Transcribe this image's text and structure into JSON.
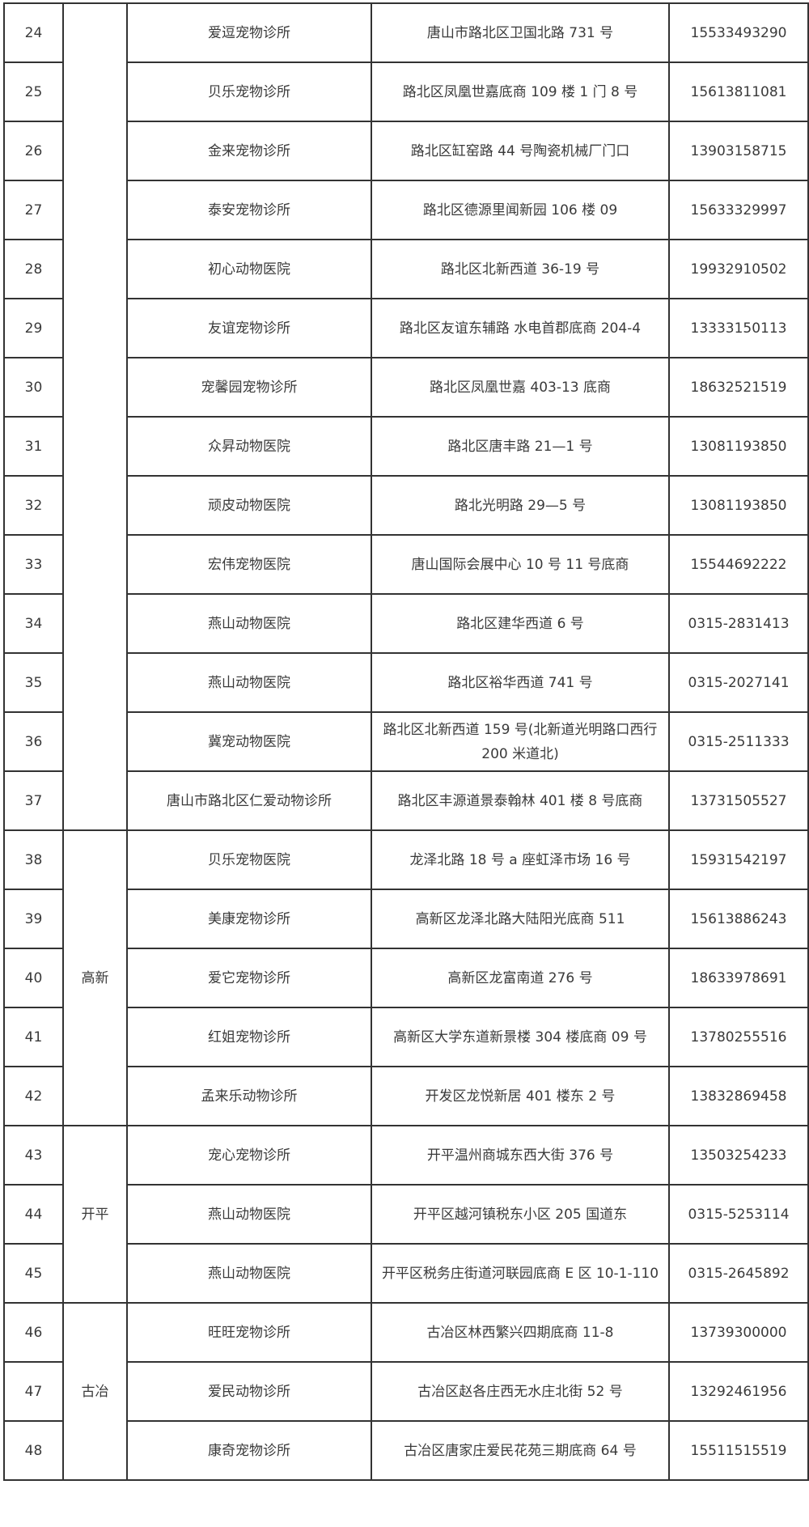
{
  "rows": [
    {
      "no": "24",
      "name": "爱逗宠物诊所",
      "address": "唐山市路北区卫国北路 731 号",
      "phone": "15533493290"
    },
    {
      "no": "25",
      "name": "贝乐宠物诊所",
      "address": "路北区凤凰世嘉底商 109 楼 1 门 8 号",
      "phone": "15613811081"
    },
    {
      "no": "26",
      "name": "金来宠物诊所",
      "address": "路北区缸窑路 44 号陶瓷机械厂门口",
      "phone": "13903158715"
    },
    {
      "no": "27",
      "name": "泰安宠物诊所",
      "address": "路北区德源里闻新园 106 楼 09",
      "phone": "15633329997"
    },
    {
      "no": "28",
      "name": "初心动物医院",
      "address": "路北区北新西道 36-19 号",
      "phone": "19932910502"
    },
    {
      "no": "29",
      "name": "友谊宠物诊所",
      "address": "路北区友谊东辅路  水电首郡底商 204-4",
      "phone": "13333150113"
    },
    {
      "no": "30",
      "name": "宠馨园宠物诊所",
      "address": "路北区凤凰世嘉 403-13 底商",
      "phone": "18632521519"
    },
    {
      "no": "31",
      "name": "众昇动物医院",
      "address": "路北区唐丰路 21—1 号",
      "phone": "13081193850"
    },
    {
      "no": "32",
      "name": "顽皮动物医院",
      "address": "路北光明路 29—5 号",
      "phone": "13081193850"
    },
    {
      "no": "33",
      "name": "宏伟宠物医院",
      "address": "唐山国际会展中心 10 号 11 号底商",
      "phone": "15544692222"
    },
    {
      "no": "34",
      "name": "燕山动物医院",
      "address": "路北区建华西道 6 号",
      "phone": "0315-2831413"
    },
    {
      "no": "35",
      "name": "燕山动物医院",
      "address": "路北区裕华西道 741 号",
      "phone": "0315-2027141"
    },
    {
      "no": "36",
      "name": "冀宠动物医院",
      "address": "路北区北新西道 159 号(北新道光明路口西行 200 米道北)",
      "phone": "0315-2511333"
    },
    {
      "no": "37",
      "name": "唐山市路北区仁爱动物诊所",
      "address": "路北区丰源道景泰翰林 401 楼 8 号底商",
      "phone": "13731505527"
    },
    {
      "no": "38",
      "name": "贝乐宠物医院",
      "address": "龙泽北路 18 号 a 座虹泽市场 16 号",
      "phone": "15931542197"
    },
    {
      "no": "39",
      "name": "美康宠物诊所",
      "address": "高新区龙泽北路大陆阳光底商 511",
      "phone": "15613886243"
    },
    {
      "no": "40",
      "name": "爱它宠物诊所",
      "address": "高新区龙富南道 276 号",
      "phone": "18633978691"
    },
    {
      "no": "41",
      "name": "红姐宠物诊所",
      "address": "高新区大学东道新景楼 304 楼底商 09 号",
      "phone": "13780255516"
    },
    {
      "no": "42",
      "name": "孟来乐动物诊所",
      "address": "开发区龙悦新居 401 楼东 2 号",
      "phone": "13832869458"
    },
    {
      "no": "43",
      "name": "宠心宠物诊所",
      "address": "开平温州商城东西大街 376 号",
      "phone": "13503254233"
    },
    {
      "no": "44",
      "name": "燕山动物医院",
      "address": "开平区越河镇税东小区 205 国道东",
      "phone": "0315-5253114"
    },
    {
      "no": "45",
      "name": "燕山动物医院",
      "address": "开平区税务庄街道河联园底商 E 区 10-1-110",
      "phone": "0315-2645892"
    },
    {
      "no": "46",
      "name": "旺旺宠物诊所",
      "address": "古冶区林西繁兴四期底商 11-8",
      "phone": "13739300000"
    },
    {
      "no": "47",
      "name": "爱民动物诊所",
      "address": "古冶区赵各庄西无水庄北街 52 号",
      "phone": "13292461956"
    },
    {
      "no": "48",
      "name": "康奇宠物诊所",
      "address": "古冶区唐家庄爱民花苑三期底商 64 号",
      "phone": "15511515519"
    }
  ],
  "districts": [
    {
      "label": "",
      "rows": 14
    },
    {
      "label": "高新",
      "rows": 5
    },
    {
      "label": "开平",
      "rows": 3
    },
    {
      "label": "古冶",
      "rows": 3
    }
  ]
}
